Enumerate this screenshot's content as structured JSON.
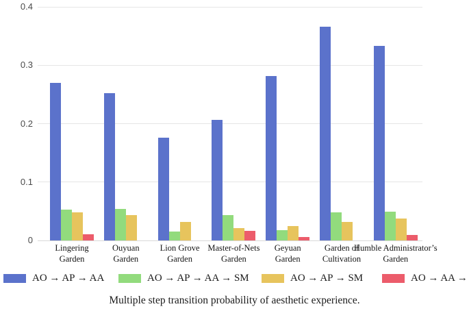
{
  "chart_data": {
    "type": "bar",
    "caption": "Multiple step transition probability of aesthetic experience.",
    "ylim": [
      0,
      0.4
    ],
    "yticks": [
      0,
      0.1,
      0.2,
      0.3,
      0.4
    ],
    "ytick_labels": [
      "0",
      "0.1",
      "0.2",
      "0.3",
      "0.4"
    ],
    "grid": true,
    "legend_position": "bottom",
    "categories": [
      "Lingering Garden",
      "Ouyuan Garden",
      "Lion Grove Garden",
      "Master-of-Nets Garden",
      "Geyuan Garden",
      "Garden of Cultivation",
      "Humble Administrator’s Garden"
    ],
    "category_label_lines": [
      [
        "Lingering",
        "Garden"
      ],
      [
        "Ouyuan",
        "Garden"
      ],
      [
        "Lion Grove",
        "Garden"
      ],
      [
        "Master-of-Nets",
        "Garden"
      ],
      [
        "Geyuan",
        "Garden"
      ],
      [
        "Garden of",
        "Cultivation"
      ],
      [
        "Humble Administrator’s",
        "Garden"
      ]
    ],
    "series": [
      {
        "name": "AO → AP → AA",
        "color": "#5b72cb",
        "values": [
          0.27,
          0.252,
          0.176,
          0.207,
          0.281,
          0.366,
          0.333
        ]
      },
      {
        "name": "AO → AP → AA → SM",
        "color": "#92db7d",
        "values": [
          0.053,
          0.054,
          0.015,
          0.043,
          0.018,
          0.048,
          0.049
        ]
      },
      {
        "name": "AO → AP → SM",
        "color": "#e7c45d",
        "values": [
          0.048,
          0.044,
          0.032,
          0.021,
          0.025,
          0.032,
          0.038
        ]
      },
      {
        "name": "AO → AA → SM",
        "color": "#ec5c6b",
        "values": [
          0.011,
          0,
          0,
          0.016,
          0.006,
          0,
          0.01
        ]
      }
    ]
  }
}
